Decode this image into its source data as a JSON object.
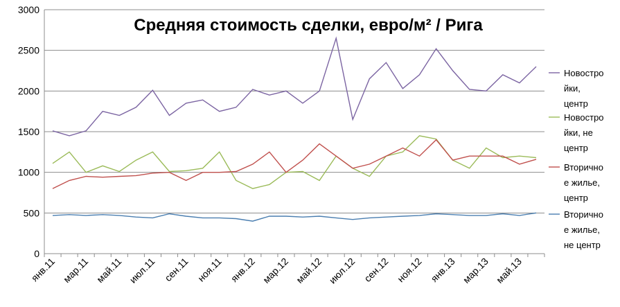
{
  "chart_data": {
    "type": "line",
    "title": "Средняя стоимость сделки, евро/м² / Рига",
    "xlabel": "",
    "ylabel": "",
    "ylim": [
      0,
      3000
    ],
    "yticks": [
      0,
      500,
      1000,
      1500,
      2000,
      2500,
      3000
    ],
    "grid": true,
    "legend_position": "right",
    "x": [
      "янв.11",
      "фев.11",
      "мар.11",
      "апр.11",
      "май.11",
      "июн.11",
      "июл.11",
      "авг.11",
      "сен.11",
      "окт.11",
      "ноя.11",
      "дек.11",
      "янв.12",
      "фев.12",
      "мар.12",
      "апр.12",
      "май.12",
      "июн.12",
      "июл.12",
      "авг.12",
      "сен.12",
      "окт.12",
      "ноя.12",
      "дек.12",
      "янв.13",
      "фев.13",
      "мар.13",
      "апр.13",
      "май.13",
      "июн.13"
    ],
    "x_tick_labels": [
      "янв.11",
      "мар.11",
      "май.11",
      "июл.11",
      "сен.11",
      "ноя.11",
      "янв.12",
      "мар.12",
      "май.12",
      "июл.12",
      "сен.12",
      "ноя.12",
      "янв.13",
      "мар.13",
      "май.13"
    ],
    "series": [
      {
        "name": "Новостройки, центр",
        "legend_lines": [
          "Новостро",
          "йки,",
          "центр"
        ],
        "color": "#7b64a2",
        "values": [
          1510,
          1450,
          1510,
          1750,
          1700,
          1800,
          2010,
          1700,
          1850,
          1890,
          1750,
          1800,
          2020,
          1950,
          2000,
          1850,
          2000,
          2650,
          1650,
          2150,
          2350,
          2030,
          2200,
          2520,
          2250,
          2020,
          2000,
          2200,
          2100,
          2300
        ]
      },
      {
        "name": "Новостройки, не центр",
        "legend_lines": [
          "Новостро",
          "йки, не",
          "центр"
        ],
        "color": "#9bbb59",
        "values": [
          1110,
          1250,
          1000,
          1080,
          1010,
          1150,
          1250,
          1010,
          1020,
          1050,
          1250,
          900,
          800,
          850,
          1000,
          1010,
          900,
          1200,
          1050,
          950,
          1200,
          1250,
          1450,
          1410,
          1150,
          1050,
          1300,
          1180,
          1200,
          1180
        ]
      },
      {
        "name": "Вторичное жилье, центр",
        "legend_lines": [
          "Вторично",
          "е жилье,",
          "центр"
        ],
        "color": "#c0504d",
        "values": [
          800,
          900,
          950,
          940,
          950,
          960,
          990,
          1000,
          900,
          1000,
          1000,
          1010,
          1100,
          1250,
          1000,
          1150,
          1350,
          1200,
          1050,
          1100,
          1200,
          1300,
          1200,
          1400,
          1150,
          1200,
          1200,
          1200,
          1100,
          1160
        ]
      },
      {
        "name": "Вторичное жилье, не центр",
        "legend_lines": [
          "Вторично",
          "е жилье,",
          "не центр"
        ],
        "color": "#4a7eb0",
        "values": [
          470,
          480,
          470,
          480,
          470,
          450,
          440,
          490,
          460,
          440,
          440,
          430,
          400,
          460,
          460,
          450,
          460,
          440,
          420,
          440,
          450,
          460,
          470,
          490,
          480,
          470,
          470,
          490,
          470,
          500
        ]
      }
    ]
  }
}
